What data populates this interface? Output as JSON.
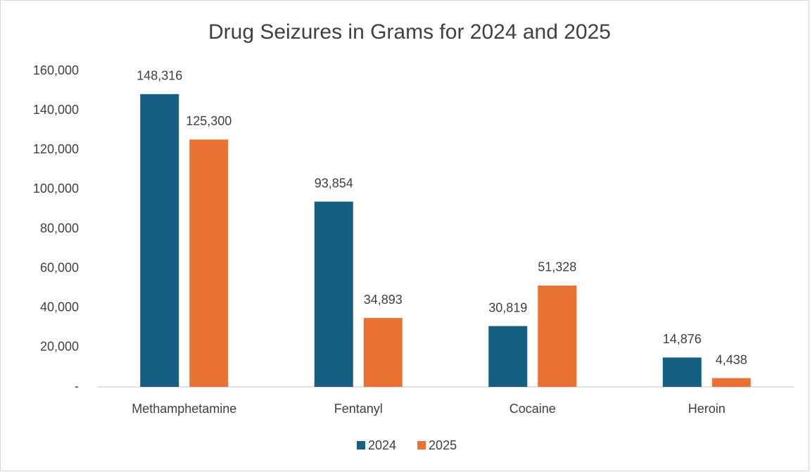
{
  "chart_data": {
    "type": "bar",
    "title": "Drug Seizures in Grams for 2024 and 2025",
    "categories": [
      "Methamphetamine",
      "Fentanyl",
      "Cocaine",
      "Heroin"
    ],
    "series": [
      {
        "name": "2024",
        "color": "#156082",
        "values": [
          148316,
          93854,
          30819,
          14876
        ],
        "value_labels": [
          "148,316",
          "93,854",
          "30,819",
          "14,876"
        ]
      },
      {
        "name": "2025",
        "color": "#e97132",
        "values": [
          125300,
          34893,
          51328,
          4438
        ],
        "value_labels": [
          "125,300",
          "34,893",
          "51,328",
          "4,438"
        ]
      }
    ],
    "ylim": [
      0,
      160000
    ],
    "yticks": [
      {
        "value": 0,
        "label": "-"
      },
      {
        "value": 20000,
        "label": "20,000"
      },
      {
        "value": 40000,
        "label": "40,000"
      },
      {
        "value": 60000,
        "label": "60,000"
      },
      {
        "value": 80000,
        "label": "80,000"
      },
      {
        "value": 100000,
        "label": "100,000"
      },
      {
        "value": 120000,
        "label": "120,000"
      },
      {
        "value": 140000,
        "label": "140,000"
      },
      {
        "value": 160000,
        "label": "160,000"
      }
    ],
    "grid": false,
    "legend": "bottom"
  }
}
